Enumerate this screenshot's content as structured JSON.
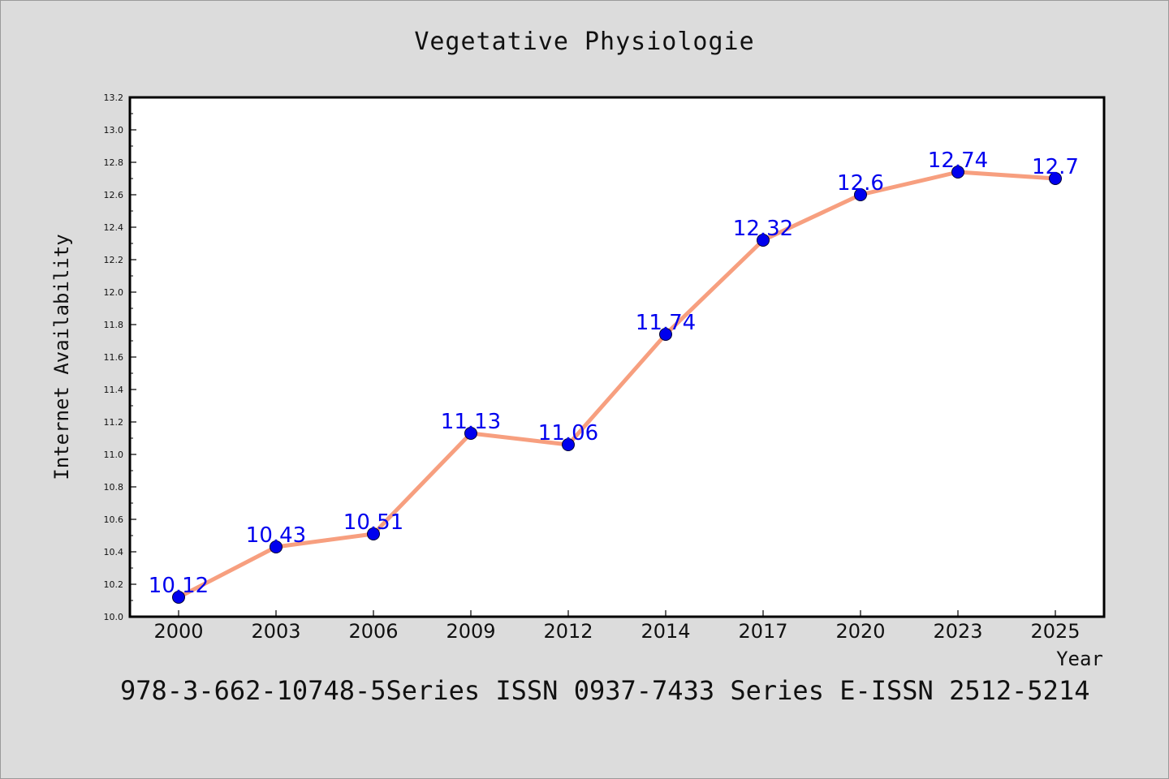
{
  "page": {
    "footer": "978-3-662-10748-5Series ISSN 0937-7433 Series E-ISSN 2512-5214"
  },
  "chart_data": {
    "type": "line",
    "title": "Vegetative Physiologie",
    "xlabel": "Year",
    "ylabel": "Internet Availability",
    "categories": [
      "2000",
      "2003",
      "2006",
      "2009",
      "2012",
      "2014",
      "2017",
      "2020",
      "2023",
      "2025"
    ],
    "series": [
      {
        "values": [
          10.12,
          10.43,
          10.51,
          11.13,
          11.06,
          11.74,
          12.32,
          12.6,
          12.74,
          12.7
        ],
        "data_labels": [
          "10.12",
          "10.43",
          "10.51",
          "11.13",
          "11.06",
          "11.74",
          "12.32",
          "12.6",
          "12.74",
          "12.7"
        ],
        "line_color": "#f79f7f",
        "marker_color": "#0000ee",
        "label_color": "#0000ee"
      }
    ],
    "ylim": [
      10.0,
      13.2
    ],
    "yticks": [
      "10.0",
      "10.2",
      "10.4",
      "10.6",
      "10.8",
      "11.0",
      "11.2",
      "11.4",
      "11.6",
      "11.8",
      "12.0",
      "12.2",
      "12.4",
      "12.6",
      "12.8",
      "13.0",
      "13.2"
    ],
    "grid": false,
    "legend": "none"
  }
}
